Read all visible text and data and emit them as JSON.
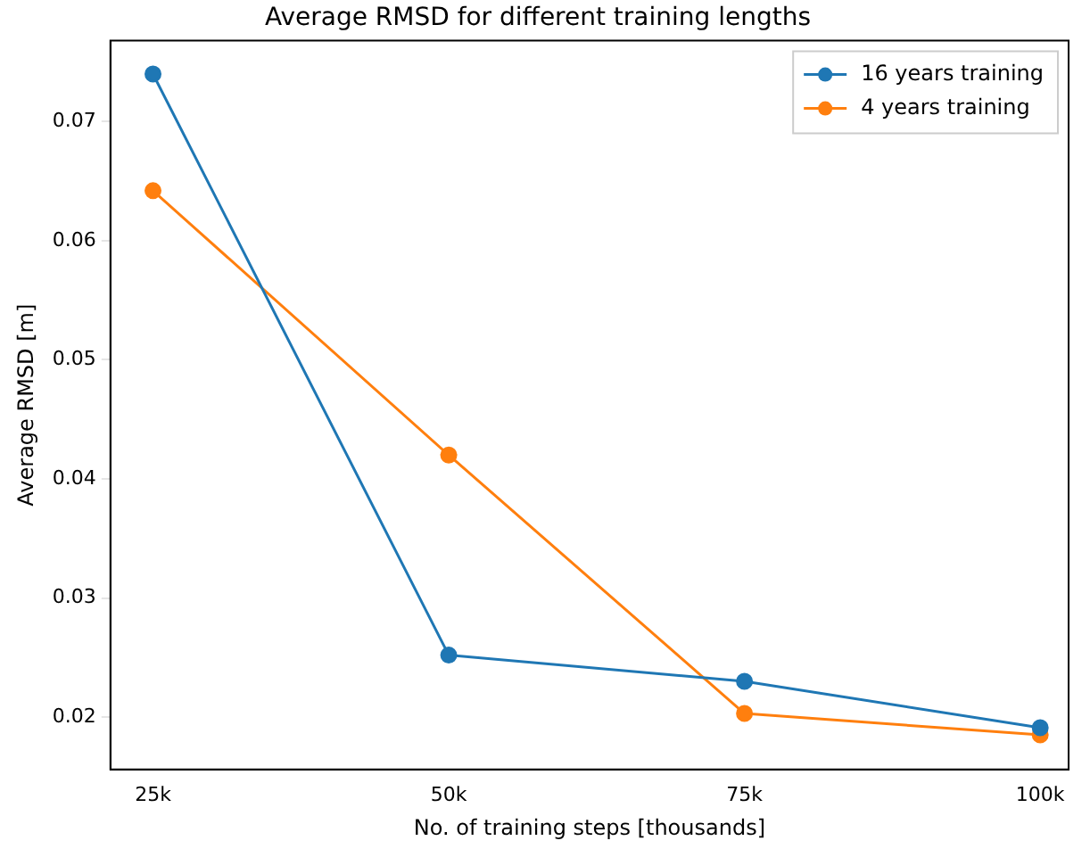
{
  "chart_data": {
    "type": "line",
    "title": "Average RMSD for different training lengths",
    "xlabel": "No. of training steps [thousands]",
    "ylabel": "Average RMSD [m]",
    "x": [
      25,
      50,
      75,
      100
    ],
    "series": [
      {
        "name": "16 years training",
        "color": "#1f77b4",
        "values": [
          0.074,
          0.0252,
          0.023,
          0.0191
        ]
      },
      {
        "name": "4 years training",
        "color": "#ff7f0e",
        "values": [
          0.0642,
          0.042,
          0.0203,
          0.0185
        ]
      }
    ],
    "xlim": [
      21.4,
      102.4
    ],
    "xticks": [
      {
        "value": 25,
        "label": "25k"
      },
      {
        "value": 50,
        "label": "50k"
      },
      {
        "value": 75,
        "label": "75k"
      },
      {
        "value": 100,
        "label": "100k"
      }
    ],
    "ylim": [
      0.0156,
      0.0768
    ],
    "yticks": [
      0.02,
      0.03,
      0.04,
      0.05,
      0.06,
      0.07
    ],
    "grid": false,
    "legend": "top right",
    "marker": "circle",
    "line_style": "solid"
  }
}
